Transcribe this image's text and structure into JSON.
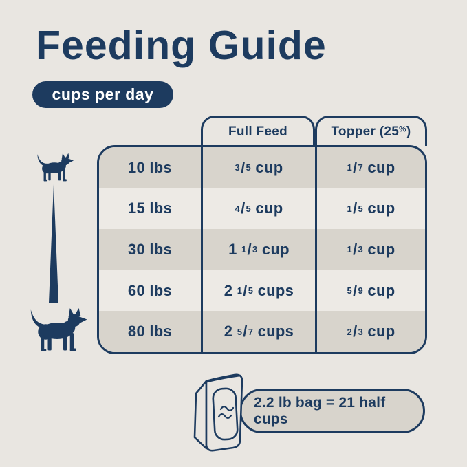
{
  "page": {
    "title": "Feeding Guide",
    "badge": "cups per day"
  },
  "table": {
    "columns": [
      "Full Feed",
      "Topper (25%)"
    ],
    "rows": [
      {
        "weight": "10 lbs",
        "full_feed": {
          "whole": "",
          "num": "3",
          "den": "5",
          "unit": "cup"
        },
        "topper": {
          "whole": "",
          "num": "1",
          "den": "7",
          "unit": "cup"
        }
      },
      {
        "weight": "15 lbs",
        "full_feed": {
          "whole": "",
          "num": "4",
          "den": "5",
          "unit": "cup"
        },
        "topper": {
          "whole": "",
          "num": "1",
          "den": "5",
          "unit": "cup"
        }
      },
      {
        "weight": "30 lbs",
        "full_feed": {
          "whole": "1",
          "num": "1",
          "den": "3",
          "unit": "cup"
        },
        "topper": {
          "whole": "",
          "num": "1",
          "den": "3",
          "unit": "cup"
        }
      },
      {
        "weight": "60 lbs",
        "full_feed": {
          "whole": "2",
          "num": "1",
          "den": "5",
          "unit": "cups"
        },
        "topper": {
          "whole": "",
          "num": "5",
          "den": "9",
          "unit": "cup"
        }
      },
      {
        "weight": "80 lbs",
        "full_feed": {
          "whole": "2",
          "num": "5",
          "den": "7",
          "unit": "cups"
        },
        "topper": {
          "whole": "",
          "num": "2",
          "den": "3",
          "unit": "cup"
        }
      }
    ]
  },
  "footer": {
    "bag_note": "2.2 lb bag = 21 half cups"
  },
  "icons": {
    "small_dog": "small-dog-icon",
    "large_dog": "large-dog-icon",
    "bag": "food-bag-icon",
    "scale_line": "size-scale-wedge"
  },
  "colors": {
    "navy": "#1d3b5f",
    "background": "#e9e6e1",
    "row_dark": "#d8d4cc",
    "row_light": "#edeae5",
    "badge_text": "#ffffff"
  },
  "chart_data": {
    "type": "table",
    "title": "Feeding Guide",
    "subtitle": "cups per day",
    "categories": [
      "10 lbs",
      "15 lbs",
      "30 lbs",
      "60 lbs",
      "80 lbs"
    ],
    "series": [
      {
        "name": "Full Feed",
        "values": [
          "3/5 cup",
          "4/5 cup",
          "1 1/3 cup",
          "2 1/5 cups",
          "2 5/7 cups"
        ]
      },
      {
        "name": "Topper (25%)",
        "values": [
          "1/7 cup",
          "1/5 cup",
          "1/3 cup",
          "5/9 cup",
          "2/3 cup"
        ]
      }
    ],
    "note": "2.2 lb bag = 21 half cups"
  }
}
